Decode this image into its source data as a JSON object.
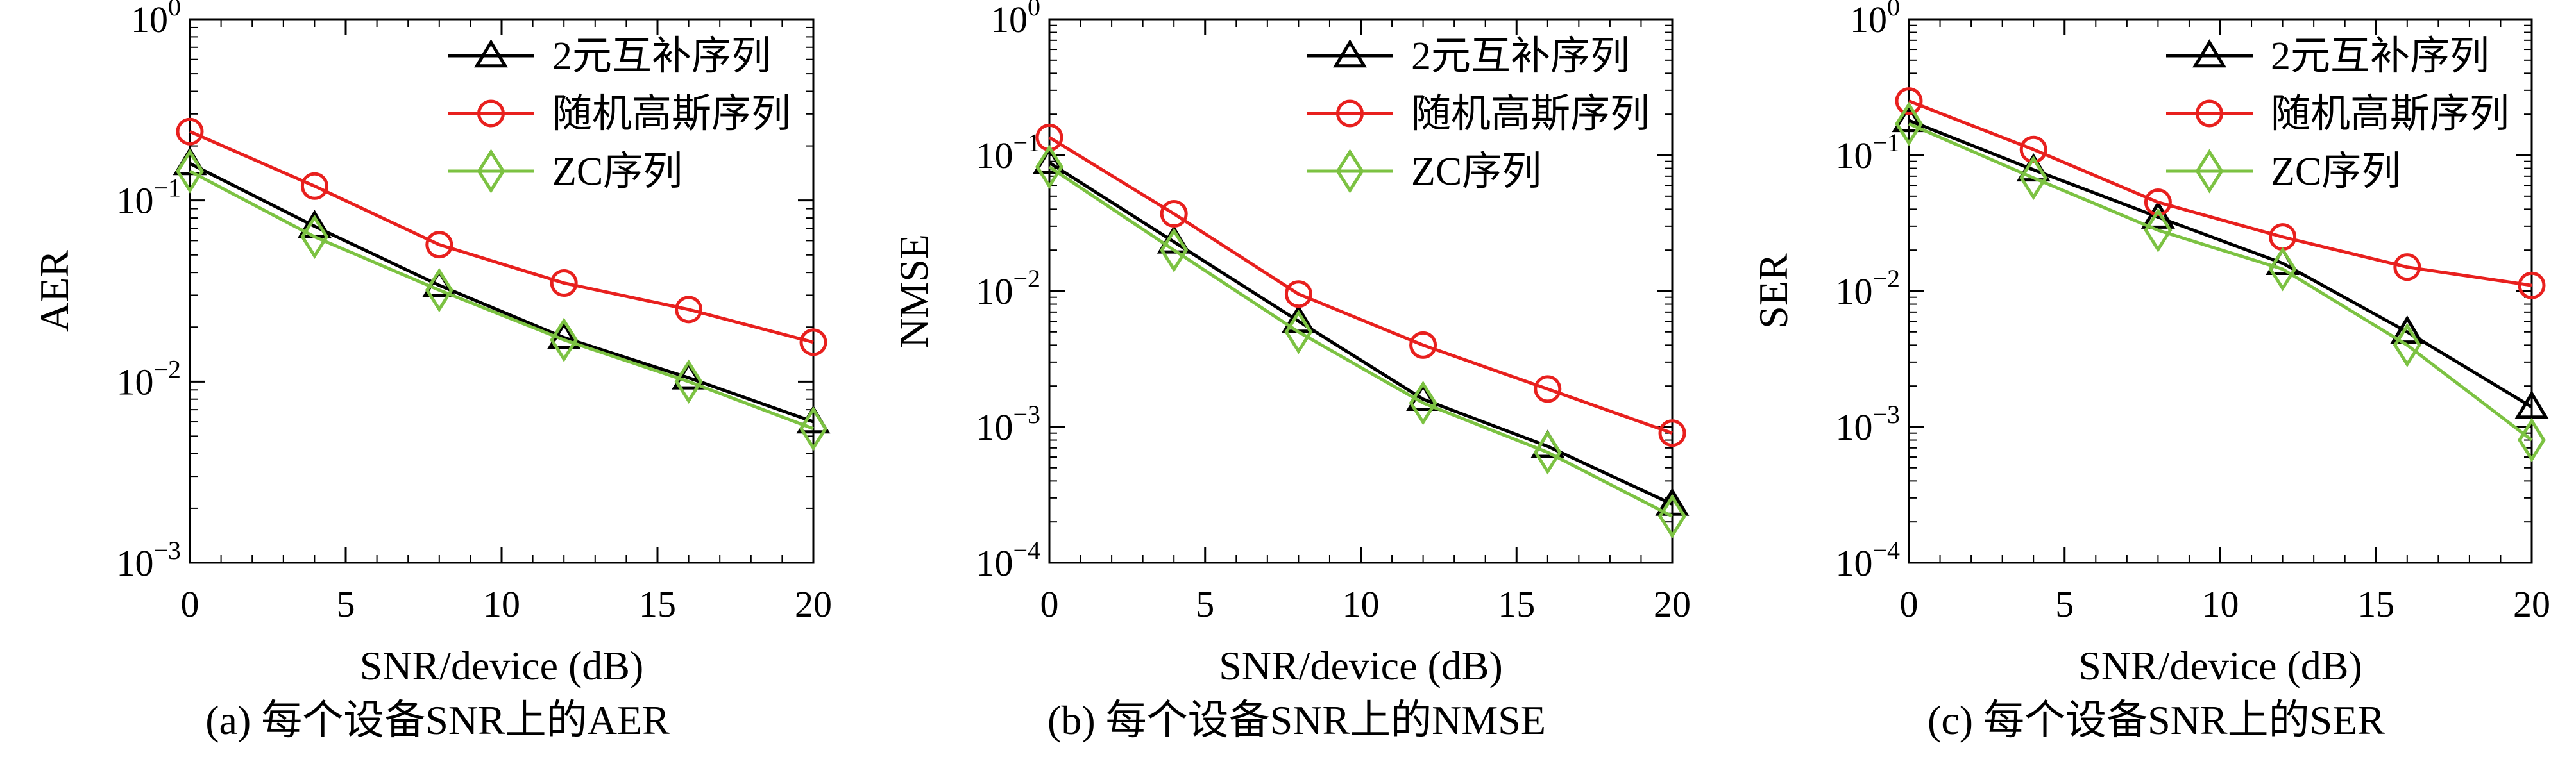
{
  "charts": [
    {
      "caption": "(a) 每个设备SNR上的AER",
      "xlabel": "SNR/device (dB)",
      "ylabel": "AER",
      "ylim": [
        0.001,
        1
      ],
      "ylog": true,
      "ymin_exp": -3,
      "yticks": [
        {
          "base": "10",
          "exp": "0"
        },
        {
          "base": "10",
          "exp": "−1"
        },
        {
          "base": "10",
          "exp": "−2"
        },
        {
          "base": "10",
          "exp": "−3"
        }
      ],
      "xlim": [
        0,
        20
      ],
      "xticks": [
        "0",
        "5",
        "10",
        "15",
        "20"
      ]
    },
    {
      "caption": "(b) 每个设备SNR上的NMSE",
      "xlabel": "SNR/device (dB)",
      "ylabel": "NMSE",
      "ylim": [
        0.0001,
        1
      ],
      "ylog": true,
      "ymin_exp": -4,
      "yticks": [
        {
          "base": "10",
          "exp": "0"
        },
        {
          "base": "10",
          "exp": "−1"
        },
        {
          "base": "10",
          "exp": "−2"
        },
        {
          "base": "10",
          "exp": "−3"
        },
        {
          "base": "10",
          "exp": "−4"
        }
      ],
      "xlim": [
        0,
        20
      ],
      "xticks": [
        "0",
        "5",
        "10",
        "15",
        "20"
      ]
    },
    {
      "caption": "(c) 每个设备SNR上的SER",
      "xlabel": "SNR/device (dB)",
      "ylabel": "SER",
      "ylim": [
        0.0001,
        1
      ],
      "ylog": true,
      "ymin_exp": -4,
      "yticks": [
        {
          "base": "10",
          "exp": "0"
        },
        {
          "base": "10",
          "exp": "−1"
        },
        {
          "base": "10",
          "exp": "−2"
        },
        {
          "base": "10",
          "exp": "−3"
        },
        {
          "base": "10",
          "exp": "−4"
        }
      ],
      "xlim": [
        0,
        20
      ],
      "xticks": [
        "0",
        "5",
        "10",
        "15",
        "20"
      ]
    }
  ],
  "legend": {
    "placement": "top-right",
    "entries": [
      {
        "name": "2元互补序列",
        "color": "#000000",
        "marker": "triangle"
      },
      {
        "name": "随机高斯序列",
        "color": "#e8201e",
        "marker": "circle"
      },
      {
        "name": "ZC序列",
        "color": "#7cc242",
        "marker": "diamond"
      }
    ]
  },
  "chart_data": [
    {
      "type": "line",
      "title": "(a) 每个设备SNR上的AER",
      "xlabel": "SNR/device (dB)",
      "ylabel": "AER",
      "yscale": "log",
      "ylim": [
        0.001,
        1
      ],
      "xlim": [
        0,
        20
      ],
      "grid": false,
      "legend": "top-right",
      "x": [
        0,
        4,
        8,
        12,
        16,
        20
      ],
      "series": [
        {
          "name": "2元互补序列",
          "color": "#000000",
          "marker": "triangle",
          "values": [
            0.16,
            0.072,
            0.034,
            0.0175,
            0.0105,
            0.006
          ]
        },
        {
          "name": "随机高斯序列",
          "color": "#e8201e",
          "marker": "circle",
          "values": [
            0.24,
            0.12,
            0.057,
            0.035,
            0.025,
            0.0165
          ]
        },
        {
          "name": "ZC序列",
          "color": "#7cc242",
          "marker": "diamond",
          "values": [
            0.145,
            0.063,
            0.032,
            0.017,
            0.01,
            0.0055
          ]
        }
      ]
    },
    {
      "type": "line",
      "title": "(b) 每个设备SNR上的NMSE",
      "xlabel": "SNR/device (dB)",
      "ylabel": "NMSE",
      "yscale": "log",
      "ylim": [
        0.0001,
        1
      ],
      "xlim": [
        0,
        20
      ],
      "grid": false,
      "legend": "top-right",
      "x": [
        0,
        4,
        8,
        12,
        16,
        20
      ],
      "series": [
        {
          "name": "2元互补序列",
          "color": "#000000",
          "marker": "triangle",
          "values": [
            0.088,
            0.023,
            0.006,
            0.0016,
            0.00072,
            0.00027
          ]
        },
        {
          "name": "随机高斯序列",
          "color": "#e8201e",
          "marker": "circle",
          "values": [
            0.135,
            0.037,
            0.0095,
            0.004,
            0.0019,
            0.0009
          ]
        },
        {
          "name": "ZC序列",
          "color": "#7cc242",
          "marker": "diamond",
          "values": [
            0.082,
            0.02,
            0.005,
            0.0015,
            0.00065,
            0.00022
          ]
        }
      ]
    },
    {
      "type": "line",
      "title": "(c) 每个设备SNR上的SER",
      "xlabel": "SNR/device (dB)",
      "ylabel": "SER",
      "yscale": "log",
      "ylim": [
        0.0001,
        1
      ],
      "xlim": [
        0,
        20
      ],
      "grid": false,
      "legend": "top-right",
      "x": [
        0,
        4,
        8,
        12,
        16,
        20
      ],
      "series": [
        {
          "name": "2元互补序列",
          "color": "#000000",
          "marker": "triangle",
          "values": [
            0.18,
            0.078,
            0.035,
            0.016,
            0.005,
            0.0014
          ]
        },
        {
          "name": "随机高斯序列",
          "color": "#e8201e",
          "marker": "circle",
          "values": [
            0.25,
            0.11,
            0.045,
            0.025,
            0.015,
            0.011
          ]
        },
        {
          "name": "ZC序列",
          "color": "#7cc242",
          "marker": "diamond",
          "values": [
            0.17,
            0.068,
            0.028,
            0.0145,
            0.004,
            0.0008
          ]
        }
      ]
    }
  ]
}
